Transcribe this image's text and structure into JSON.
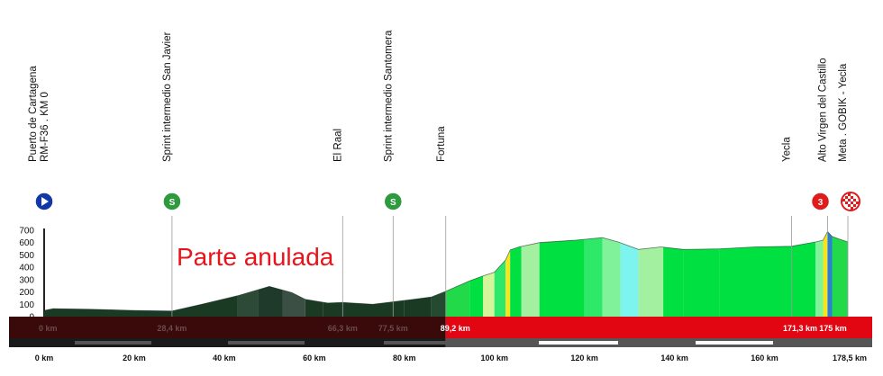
{
  "annotation": "Parte anulada",
  "colors": {
    "cancelled_fill": "#1a3a24",
    "cancelled_fill_dark": "#2c3d33",
    "cancelled_fill_mid": "#3b4f44",
    "bar_cancelled": "#3a0a0a",
    "bar_active": "#e20613",
    "annotation": "#e8141b",
    "sprint_icon": "#2c9a3d",
    "start_icon": "#1238a8",
    "climb_icon": "#e01b1b"
  },
  "chart_data": {
    "type": "area",
    "title": "",
    "xlabel": "",
    "ylabel": "",
    "xlim": [
      0,
      178.5
    ],
    "ylim": [
      0,
      700
    ],
    "y_ticks": [
      "700",
      "600",
      "500",
      "400",
      "300",
      "200",
      "100",
      "0"
    ],
    "y_tick_values": [
      700,
      600,
      500,
      400,
      300,
      200,
      100,
      0
    ],
    "x_ticks": [
      {
        "km": 0,
        "label": "0 km"
      },
      {
        "km": 20,
        "label": "20 km"
      },
      {
        "km": 40,
        "label": "40 km"
      },
      {
        "km": 60,
        "label": "60 km"
      },
      {
        "km": 80,
        "label": "80 km"
      },
      {
        "km": 100,
        "label": "100 km"
      },
      {
        "km": 120,
        "label": "120 km"
      },
      {
        "km": 140,
        "label": "140 km"
      },
      {
        "km": 160,
        "label": "160 km"
      },
      {
        "km": 178.5,
        "label": "178,5 km"
      }
    ],
    "cancelled_until_km": 89.2,
    "profile": [
      [
        0,
        50
      ],
      [
        2,
        65
      ],
      [
        10,
        60
      ],
      [
        20,
        50
      ],
      [
        28.4,
        45
      ],
      [
        35,
        100
      ],
      [
        43,
        170
      ],
      [
        50,
        245
      ],
      [
        55,
        195
      ],
      [
        58,
        140
      ],
      [
        63,
        110
      ],
      [
        66.3,
        115
      ],
      [
        73,
        100
      ],
      [
        77.5,
        120
      ],
      [
        82,
        140
      ],
      [
        86,
        160
      ],
      [
        89.2,
        205
      ],
      [
        94.5,
        290
      ],
      [
        97.5,
        330
      ],
      [
        100,
        360
      ],
      [
        102.5,
        460
      ],
      [
        103.5,
        540
      ],
      [
        105.5,
        565
      ],
      [
        110,
        600
      ],
      [
        118,
        620
      ],
      [
        124,
        640
      ],
      [
        127.5,
        605
      ],
      [
        132,
        545
      ],
      [
        137,
        565
      ],
      [
        142,
        545
      ],
      [
        150,
        550
      ],
      [
        158,
        565
      ],
      [
        166,
        570
      ],
      [
        171.3,
        605
      ],
      [
        173,
        620
      ],
      [
        174,
        690
      ],
      [
        175,
        650
      ],
      [
        176.5,
        630
      ],
      [
        178.5,
        605
      ]
    ],
    "segments": [
      {
        "from": 0,
        "to": 43,
        "color": "#1a3a24"
      },
      {
        "from": 43,
        "to": 47.5,
        "color": "#2c4a35"
      },
      {
        "from": 47.5,
        "to": 53,
        "color": "#1f3a2a"
      },
      {
        "from": 53,
        "to": 58,
        "color": "#3b4f44"
      },
      {
        "from": 58,
        "to": 62,
        "color": "#1a3a24"
      },
      {
        "from": 62,
        "to": 80,
        "color": "#1a3a24"
      },
      {
        "from": 80,
        "to": 86,
        "color": "#1a3a24"
      },
      {
        "from": 86,
        "to": 89.2,
        "color": "#244a30"
      },
      {
        "from": 89.2,
        "to": 94.5,
        "color": "#22d94a"
      },
      {
        "from": 94.5,
        "to": 97.5,
        "color": "#00e040"
      },
      {
        "from": 97.5,
        "to": 100,
        "color": "#d4f59a"
      },
      {
        "from": 100,
        "to": 102.5,
        "color": "#2ee86a"
      },
      {
        "from": 102.5,
        "to": 103.5,
        "color": "#f3e620"
      },
      {
        "from": 103.5,
        "to": 106,
        "color": "#00e040"
      },
      {
        "from": 106,
        "to": 110,
        "color": "#a3f0a0"
      },
      {
        "from": 110,
        "to": 120,
        "color": "#00e040"
      },
      {
        "from": 120,
        "to": 124,
        "color": "#2ee86a"
      },
      {
        "from": 124,
        "to": 128,
        "color": "#7ff29a"
      },
      {
        "from": 128,
        "to": 132,
        "color": "#7ef4ee"
      },
      {
        "from": 132,
        "to": 137.5,
        "color": "#a3f0a0"
      },
      {
        "from": 137.5,
        "to": 142,
        "color": "#00e040"
      },
      {
        "from": 142,
        "to": 150,
        "color": "#00e040"
      },
      {
        "from": 150,
        "to": 171.3,
        "color": "#00e040"
      },
      {
        "from": 171.3,
        "to": 173,
        "color": "#7ff29a"
      },
      {
        "from": 173,
        "to": 174,
        "color": "#f3e620"
      },
      {
        "from": 174,
        "to": 175,
        "color": "#2a7fd6"
      },
      {
        "from": 175,
        "to": 178.5,
        "color": "#22d94a"
      }
    ],
    "markers": [
      {
        "km": 0,
        "label_lines": [
          "Puerto de Cartagena",
          "RM-F36 . KM 0"
        ],
        "icon": "start-icon",
        "icon_text": ""
      },
      {
        "km": 28.4,
        "label_lines": [
          "Sprint intermedio San Javier"
        ],
        "icon": "sprint-icon",
        "icon_text": "S"
      },
      {
        "km": 66.3,
        "label_lines": [
          "El Raal"
        ],
        "icon": "",
        "icon_text": ""
      },
      {
        "km": 77.5,
        "label_lines": [
          "Sprint intermedio Santomera"
        ],
        "icon": "sprint-icon",
        "icon_text": "S"
      },
      {
        "km": 89.2,
        "label_lines": [
          "Fortuna"
        ],
        "icon": "",
        "icon_text": ""
      },
      {
        "km": 166,
        "label_lines": [
          "Yecla"
        ],
        "icon": "",
        "icon_text": ""
      },
      {
        "km": 174,
        "label_lines": [
          "Alto Virgen del Castillo"
        ],
        "icon": "climb-icon",
        "icon_text": "3"
      },
      {
        "km": 178.5,
        "label_lines": [
          "Meta . GOBIK - Yecla"
        ],
        "icon": "finish-icon",
        "icon_text": ""
      }
    ],
    "bar_labels": [
      {
        "km": 0,
        "label": "0 km",
        "cancelled": true
      },
      {
        "km": 28.4,
        "label": "28,4 km",
        "cancelled": true
      },
      {
        "km": 66.3,
        "label": "66,3 km",
        "cancelled": true
      },
      {
        "km": 77.5,
        "label": "77,5 km",
        "cancelled": true
      },
      {
        "km": 89.2,
        "label": "89,2 km",
        "cancelled": false
      },
      {
        "km": 171.3,
        "label": "171,3 km",
        "cancelled": false
      },
      {
        "km": 175,
        "label": "175 km",
        "cancelled": false
      }
    ]
  }
}
